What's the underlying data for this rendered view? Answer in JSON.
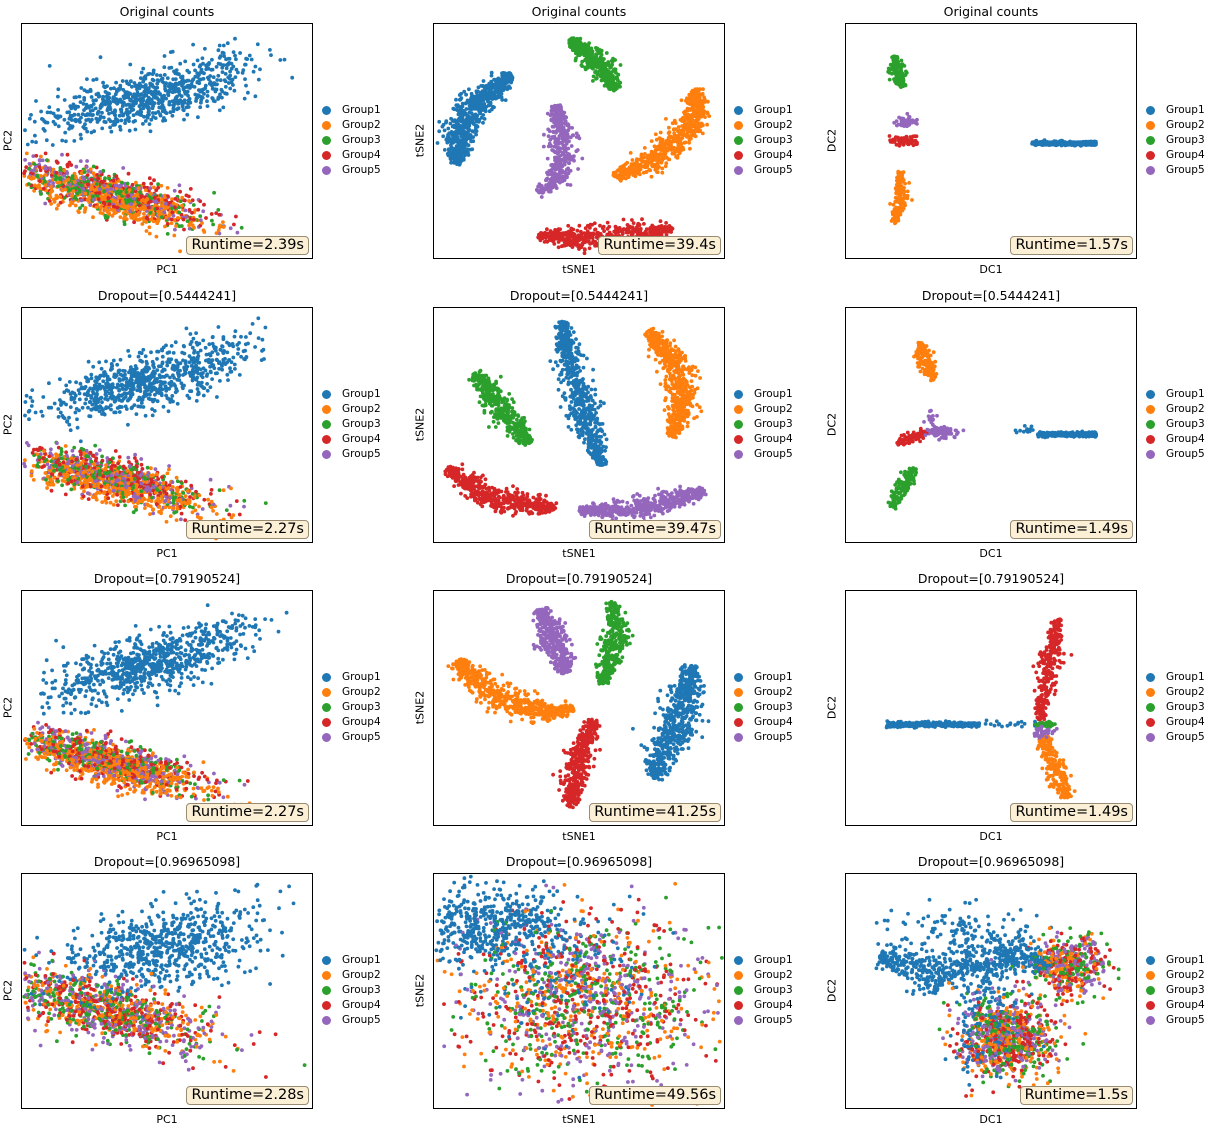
{
  "legend": [
    "Group1",
    "Group2",
    "Group3",
    "Group4",
    "Group5"
  ],
  "colors": [
    "#1f77b4",
    "#ff7f0e",
    "#2ca02c",
    "#d62728",
    "#9467bd"
  ],
  "chart_data": [
    {
      "type": "scatter",
      "row": 0,
      "col": 0,
      "title": "Original counts",
      "xlabel": "PC1",
      "ylabel": "PC2",
      "runtime": "Runtime=2.39s",
      "layout": "pca",
      "dropout": 0.0
    },
    {
      "type": "scatter",
      "row": 0,
      "col": 1,
      "title": "Original counts",
      "xlabel": "tSNE1",
      "ylabel": "tSNE2",
      "runtime": "Runtime=39.4s",
      "layout": "tsne_a",
      "dropout": 0.0
    },
    {
      "type": "scatter",
      "row": 0,
      "col": 2,
      "title": "Original counts",
      "xlabel": "DC1",
      "ylabel": "DC2",
      "runtime": "Runtime=1.57s",
      "layout": "dc_a",
      "dropout": 0.0
    },
    {
      "type": "scatter",
      "row": 1,
      "col": 0,
      "title": "Dropout=[0.5444241]",
      "xlabel": "PC1",
      "ylabel": "PC2",
      "runtime": "Runtime=2.27s",
      "layout": "pca",
      "dropout": 0.5444241
    },
    {
      "type": "scatter",
      "row": 1,
      "col": 1,
      "title": "Dropout=[0.5444241]",
      "xlabel": "tSNE1",
      "ylabel": "tSNE2",
      "runtime": "Runtime=39.47s",
      "layout": "tsne_b",
      "dropout": 0.5444241
    },
    {
      "type": "scatter",
      "row": 1,
      "col": 2,
      "title": "Dropout=[0.5444241]",
      "xlabel": "DC1",
      "ylabel": "DC2",
      "runtime": "Runtime=1.49s",
      "layout": "dc_b",
      "dropout": 0.5444241
    },
    {
      "type": "scatter",
      "row": 2,
      "col": 0,
      "title": "Dropout=[0.79190524]",
      "xlabel": "PC1",
      "ylabel": "PC2",
      "runtime": "Runtime=2.27s",
      "layout": "pca",
      "dropout": 0.79190524
    },
    {
      "type": "scatter",
      "row": 2,
      "col": 1,
      "title": "Dropout=[0.79190524]",
      "xlabel": "tSNE1",
      "ylabel": "tSNE2",
      "runtime": "Runtime=41.25s",
      "layout": "tsne_c",
      "dropout": 0.79190524
    },
    {
      "type": "scatter",
      "row": 2,
      "col": 2,
      "title": "Dropout=[0.79190524]",
      "xlabel": "DC1",
      "ylabel": "DC2",
      "runtime": "Runtime=1.49s",
      "layout": "dc_c",
      "dropout": 0.79190524
    },
    {
      "type": "scatter",
      "row": 3,
      "col": 0,
      "title": "Dropout=[0.96965098]",
      "xlabel": "PC1",
      "ylabel": "PC2",
      "runtime": "Runtime=2.28s",
      "layout": "pca_mixed",
      "dropout": 0.96965098
    },
    {
      "type": "scatter",
      "row": 3,
      "col": 1,
      "title": "Dropout=[0.96965098]",
      "xlabel": "tSNE1",
      "ylabel": "tSNE2",
      "runtime": "Runtime=49.56s",
      "layout": "tsne_mixed",
      "dropout": 0.96965098
    },
    {
      "type": "scatter",
      "row": 3,
      "col": 2,
      "title": "Dropout=[0.96965098]",
      "xlabel": "DC1",
      "ylabel": "DC2",
      "runtime": "Runtime=1.5s",
      "layout": "dc_mixed",
      "dropout": 0.96965098
    }
  ]
}
